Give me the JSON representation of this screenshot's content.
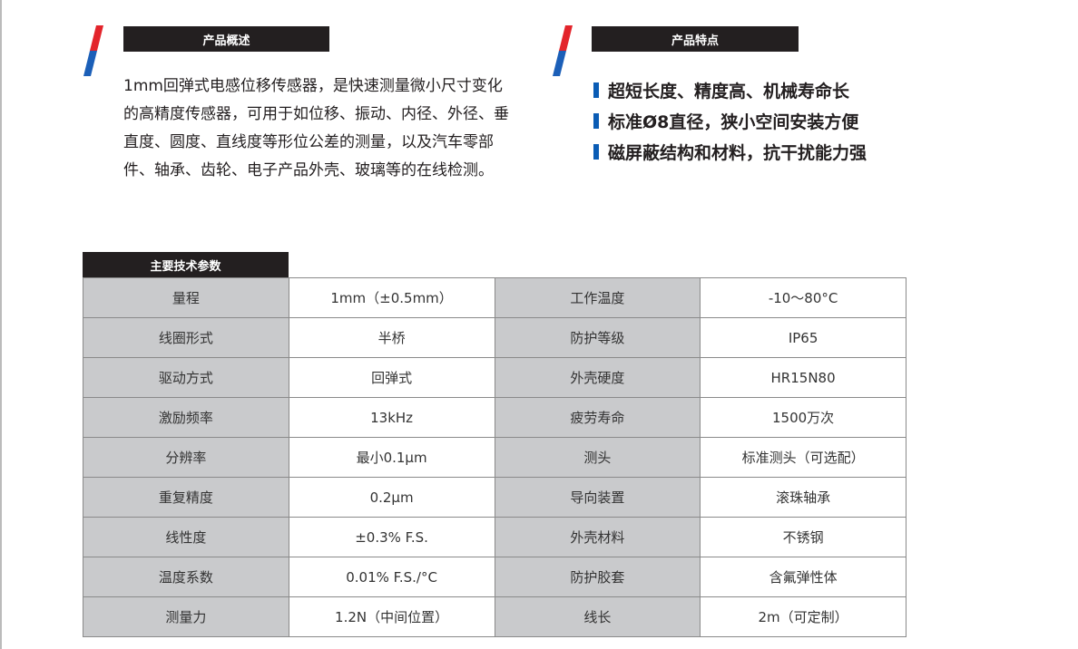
{
  "overview": {
    "title": "产品概述",
    "text": "1mm回弹式电感位移传感器，是快速测量微小尺寸变化的高精度传感器，可用于如位移、振动、内径、外径、垂直度、圆度、直线度等形位公差的测量，以及汽车零部件、轴承、齿轮、电子产品外壳、玻璃等的在线检测。"
  },
  "features": {
    "title": "产品特点",
    "items": [
      "超短长度、精度高、机械寿命长",
      "标准Ø8直径，狭小空间安装方便",
      "磁屏蔽结构和材料，抗干扰能力强"
    ],
    "bullet_color": "#0a5cb5"
  },
  "specs": {
    "title": "主要技术参数",
    "rows": [
      [
        "量程",
        "1mm（±0.5mm）",
        "工作温度",
        "-10～80°C"
      ],
      [
        "线圈形式",
        "半桥",
        "防护等级",
        "IP65"
      ],
      [
        "驱动方式",
        "回弹式",
        "外壳硬度",
        "HR15N80"
      ],
      [
        "激励频率",
        "13kHz",
        "疲劳寿命",
        "1500万次"
      ],
      [
        "分辨率",
        "最小0.1μm",
        "测头",
        "标准测头（可选配）"
      ],
      [
        "重复精度",
        "0.2μm",
        "导向装置",
        "滚珠轴承"
      ],
      [
        "线性度",
        "±0.3% F.S.",
        "外壳材料",
        "不锈钢"
      ],
      [
        "温度系数",
        "0.01% F.S./°C",
        "防护胶套",
        "含氟弹性体"
      ],
      [
        "测量力",
        "1.2N（中间位置）",
        "线长",
        "2m（可定制）"
      ]
    ]
  },
  "colors": {
    "red": "#e3242b",
    "blue": "#1b5fb8",
    "header_bg": "#231f20",
    "key_cell_bg": "#c9cacc"
  }
}
